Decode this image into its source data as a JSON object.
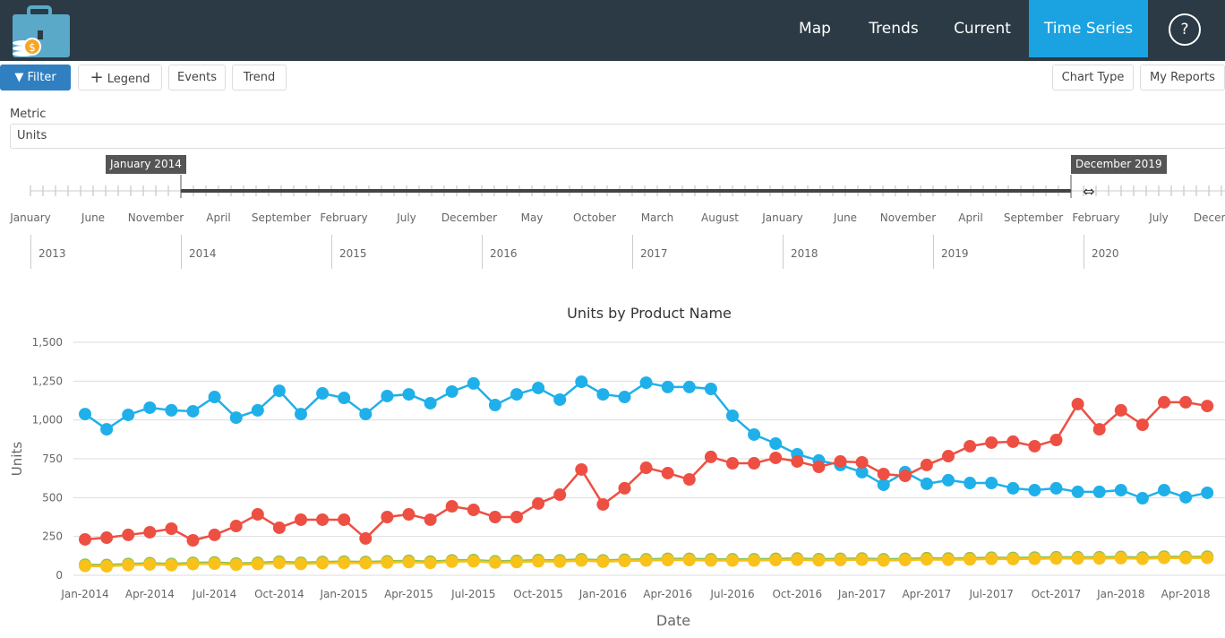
{
  "header": {
    "nav": [
      "Map",
      "Trends",
      "Current",
      "Time Series"
    ],
    "active": "Time Series",
    "help": "?"
  },
  "toolbar": {
    "filter": "Filter",
    "legend": "Legend",
    "events": "Events",
    "trend": "Trend",
    "chart_type": "Chart Type",
    "my_reports": "My Reports"
  },
  "metric": {
    "label": "Metric",
    "value": "Units"
  },
  "timeline": {
    "start": "January 2014",
    "end": "December 2019",
    "months": [
      "January",
      "June",
      "November",
      "April",
      "September",
      "February",
      "July",
      "December",
      "May",
      "October",
      "March",
      "August",
      "January",
      "June",
      "November",
      "April",
      "September",
      "February",
      "July",
      "December"
    ],
    "years": [
      "2013",
      "2014",
      "2015",
      "2016",
      "2017",
      "2018",
      "2019",
      "2020"
    ]
  },
  "colors": {
    "header": "#2b3a44",
    "accent": "#1aa3e0",
    "blue": "#1fb0ea",
    "red": "#ee4f43",
    "yellow": "#f9c21a",
    "green": "#8cc152"
  },
  "chart_data": {
    "type": "line",
    "title": "Units by Product Name",
    "xlabel": "Date",
    "ylabel": "Units",
    "ylim": [
      0,
      1500
    ],
    "yticks": [
      "0",
      "250",
      "500",
      "750",
      "1,000",
      "1,250",
      "1,500"
    ],
    "xticks": [
      "Jan-2014",
      "Apr-2014",
      "Jul-2014",
      "Oct-2014",
      "Jan-2015",
      "Apr-2015",
      "Jul-2015",
      "Oct-2015",
      "Jan-2016",
      "Apr-2016",
      "Jul-2016",
      "Oct-2016",
      "Jan-2017",
      "Apr-2017",
      "Jul-2017",
      "Oct-2017",
      "Jan-2018",
      "Apr-2018"
    ],
    "x_start": "Jan-2014",
    "x_interval": "monthly",
    "grid": true,
    "series": [
      {
        "color": "#1fb0ea",
        "values": [
          1038,
          940,
          1033,
          1079,
          1062,
          1056,
          1148,
          1015,
          1062,
          1188,
          1038,
          1171,
          1142,
          1038,
          1154,
          1165,
          1108,
          1183,
          1235,
          1096,
          1165,
          1206,
          1131,
          1246,
          1165,
          1148,
          1240,
          1212,
          1212,
          1200,
          1027,
          906,
          848,
          779,
          739,
          710,
          664,
          583,
          664,
          589,
          612,
          594,
          594,
          560,
          548,
          560,
          537,
          537,
          548,
          496,
          548,
          502,
          531
        ]
      },
      {
        "color": "#ee4f43",
        "values": [
          231,
          242,
          260,
          277,
          300,
          225,
          260,
          317,
          392,
          306,
          358,
          358,
          358,
          237,
          375,
          392,
          358,
          444,
          421,
          375,
          375,
          462,
          519,
          681,
          456,
          560,
          692,
          658,
          617,
          762,
          721,
          721,
          756,
          733,
          698,
          733,
          727,
          652,
          640,
          710,
          767,
          831,
          854,
          860,
          831,
          871,
          1102,
          940,
          1062,
          969,
          1114,
          1114,
          1090
        ]
      },
      {
        "color": "#8cc152",
        "values": [
          68,
          66,
          73,
          78,
          73,
          80,
          83,
          76,
          80,
          88,
          81,
          86,
          88,
          86,
          90,
          93,
          88,
          96,
          98,
          90,
          93,
          98,
          96,
          103,
          96,
          100,
          103,
          106,
          106,
          103,
          103,
          103,
          106,
          108,
          104,
          106,
          108,
          103,
          106,
          110,
          108,
          110,
          113,
          112,
          114,
          116,
          116,
          116,
          118,
          114,
          120,
          118,
          120
        ]
      },
      {
        "color": "#f9c21a",
        "values": [
          60,
          58,
          65,
          70,
          65,
          72,
          75,
          68,
          72,
          80,
          73,
          78,
          80,
          78,
          82,
          85,
          80,
          88,
          90,
          82,
          85,
          90,
          88,
          95,
          88,
          92,
          95,
          98,
          98,
          95,
          95,
          95,
          98,
          100,
          96,
          98,
          100,
          95,
          98,
          102,
          100,
          102,
          105,
          104,
          106,
          108,
          108,
          108,
          110,
          106,
          112,
          110,
          112
        ]
      }
    ]
  }
}
